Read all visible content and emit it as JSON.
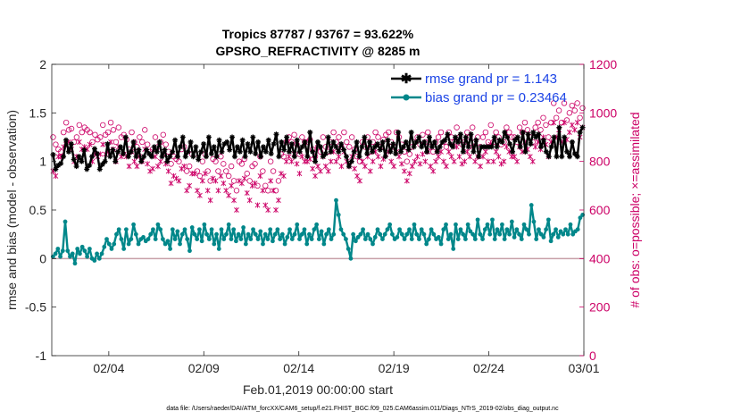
{
  "chart_data": {
    "type": "line",
    "title": "Tropics 87787 / 93767 = 93.622%",
    "subtitle": "GPSRO_REFRACTIVITY @ 8285 m",
    "xlabel": "Feb.01,2019 00:00:00 start",
    "ylabel": "rmse and bias (model - observation)",
    "ylabel_right": "# of obs: o=possible; ×=assimilated",
    "footer": "data file: /Users/raeder/DAI/ATM_forcXX/CAM6_setup/f.e21.FHIST_BGC.f09_025.CAM6assim.011/Diags_NTrS_2019-02/obs_diag_output.nc",
    "xlim": [
      0,
      28
    ],
    "ylim": [
      -1,
      2
    ],
    "ylim_right": [
      0,
      1200
    ],
    "xticks": [
      {
        "value": 3,
        "label": "02/04"
      },
      {
        "value": 8,
        "label": "02/09"
      },
      {
        "value": 13,
        "label": "02/14"
      },
      {
        "value": 18,
        "label": "02/19"
      },
      {
        "value": 23,
        "label": "02/24"
      },
      {
        "value": 28,
        "label": "03/01"
      }
    ],
    "yticks": [
      {
        "value": -1,
        "label": "-1"
      },
      {
        "value": -0.5,
        "label": "-0.5"
      },
      {
        "value": 0,
        "label": "0"
      },
      {
        "value": 0.5,
        "label": "0.5"
      },
      {
        "value": 1,
        "label": "1"
      },
      {
        "value": 1.5,
        "label": "1.5"
      },
      {
        "value": 2,
        "label": "2"
      }
    ],
    "yticks_right": [
      {
        "value": 0,
        "label": "0"
      },
      {
        "value": 200,
        "label": "200"
      },
      {
        "value": 400,
        "label": "400"
      },
      {
        "value": 600,
        "label": "600"
      },
      {
        "value": 800,
        "label": "800"
      },
      {
        "value": 1000,
        "label": "1000"
      },
      {
        "value": 1200,
        "label": "1200"
      }
    ],
    "legend": {
      "placement": "top-right",
      "entries": [
        {
          "label": "rmse grand pr = 1.143",
          "series": "rmse"
        },
        {
          "label": "bias grand pr = 0.23464",
          "series": "bias"
        }
      ]
    },
    "series": [
      {
        "name": "rmse",
        "axis": "left",
        "color": "#000000",
        "marker": "star",
        "values": [
          1.07,
          0.92,
          0.96,
          0.98,
          1.05,
          1.22,
          1.1,
          1.18,
          1.02,
          0.95,
          1.05,
          1.0,
          1.12,
          0.92,
          0.96,
          1.05,
          1.13,
          1.08,
          0.92,
          0.97,
          1.0,
          1.18,
          1.05,
          1.12,
          1.0,
          1.1,
          1.15,
          1.08,
          1.25,
          1.05,
          1.1,
          1.2,
          1.05,
          1.12,
          1.0,
          1.05,
          1.12,
          1.08,
          1.05,
          1.15,
          1.1,
          1.2,
          1.05,
          1.12,
          1.0,
          1.05,
          1.1,
          1.22,
          1.05,
          1.15,
          1.25,
          1.05,
          1.1,
          1.2,
          1.05,
          1.15,
          1.02,
          1.1,
          1.18,
          1.05,
          1.25,
          1.08,
          1.15,
          1.05,
          1.22,
          1.1,
          1.18,
          1.2,
          1.12,
          1.25,
          1.05,
          1.15,
          1.1,
          1.22,
          1.05,
          1.18,
          1.1,
          1.25,
          1.08,
          1.2,
          1.05,
          1.15,
          1.1,
          1.22,
          1.08,
          1.18,
          1.28,
          1.05,
          1.2,
          1.12,
          1.25,
          1.1,
          1.18,
          1.05,
          1.22,
          1.1,
          1.15,
          1.2,
          1.05,
          1.3,
          1.1,
          1.0,
          1.2,
          1.15,
          1.05,
          1.08,
          1.25,
          1.1,
          1.2,
          1.15,
          1.1,
          1.18,
          1.12,
          1.05,
          0.95,
          1.0,
          1.1,
          1.2,
          1.05,
          1.15,
          1.25,
          1.08,
          1.2,
          1.1,
          1.15,
          1.18,
          1.12,
          1.2,
          1.05,
          1.22,
          1.1,
          1.18,
          1.08,
          1.3,
          1.1,
          1.15,
          1.2,
          1.12,
          1.3,
          1.15,
          1.2,
          1.25,
          1.15,
          1.2,
          1.1,
          1.25,
          1.15,
          1.2,
          1.1,
          1.15,
          1.2,
          1.22,
          1.28,
          1.18,
          1.15,
          1.25,
          1.2,
          1.28,
          1.1,
          1.25,
          1.15,
          1.28,
          1.1,
          1.22,
          1.05,
          1.15,
          1.15,
          1.15,
          1.15,
          1.15,
          1.25,
          1.15,
          1.22,
          1.2,
          1.3,
          1.25,
          1.18,
          1.1,
          1.22,
          1.25,
          1.15,
          1.3,
          1.1,
          1.28,
          1.18,
          1.3,
          1.25,
          1.28,
          1.15,
          1.22,
          1.1,
          1.05,
          1.15,
          1.25,
          1.05,
          1.35,
          1.05,
          1.25,
          1.1,
          1.05,
          1.2,
          1.08,
          1.05,
          1.3,
          1.35
        ]
      },
      {
        "name": "bias",
        "axis": "left",
        "color": "#00878a",
        "marker": "circle",
        "values": [
          0.02,
          0.05,
          0.1,
          0.02,
          0.08,
          0.38,
          0.08,
          0.02,
          0.05,
          -0.05,
          0.1,
          0.05,
          0.12,
          0.08,
          0.02,
          0.1,
          0.0,
          -0.02,
          0.05,
          0.0,
          0.05,
          0.12,
          0.2,
          0.15,
          0.1,
          0.15,
          0.25,
          0.3,
          0.2,
          0.1,
          0.3,
          0.15,
          0.2,
          0.35,
          0.25,
          0.15,
          0.2,
          0.22,
          0.18,
          0.2,
          0.25,
          0.3,
          0.2,
          0.35,
          0.3,
          0.2,
          0.15,
          0.18,
          0.1,
          0.3,
          0.2,
          0.28,
          0.15,
          0.25,
          0.3,
          0.2,
          0.08,
          0.32,
          0.25,
          0.2,
          0.3,
          0.18,
          0.35,
          0.25,
          0.2,
          0.3,
          0.15,
          0.25,
          0.1,
          0.3,
          0.2,
          0.25,
          0.35,
          0.2,
          0.3,
          0.18,
          0.25,
          0.2,
          0.32,
          0.15,
          0.25,
          0.2,
          0.3,
          0.25,
          0.2,
          0.28,
          0.15,
          0.25,
          0.2,
          0.3,
          0.18,
          0.25,
          0.3,
          0.2,
          0.25,
          0.15,
          0.22,
          0.3,
          0.2,
          0.25,
          0.35,
          0.2,
          0.25,
          0.3,
          0.15,
          0.25,
          0.2,
          0.3,
          0.35,
          0.2,
          0.28,
          0.15,
          0.25,
          0.3,
          0.2,
          0.25,
          0.6,
          0.45,
          0.3,
          0.25,
          0.2,
          0.1,
          0.0,
          0.25,
          0.18,
          0.22,
          0.25,
          0.3,
          0.2,
          0.25,
          0.2,
          0.15,
          0.22,
          0.3,
          0.25,
          0.2,
          0.25,
          0.3,
          0.35,
          0.25,
          0.2,
          0.22,
          0.3,
          0.25,
          0.2,
          0.25,
          0.3,
          0.2,
          0.35,
          0.25,
          0.2,
          0.3,
          0.25,
          0.15,
          0.2,
          0.3,
          0.25,
          0.2,
          0.22,
          0.15,
          0.3,
          0.35,
          0.2,
          0.25,
          0.1,
          0.35,
          0.2,
          0.3,
          0.25,
          0.2,
          0.35,
          0.28,
          0.25,
          0.2,
          0.4,
          0.25,
          0.2,
          0.3,
          0.35,
          0.25,
          0.4,
          0.2,
          0.3,
          0.25,
          0.35,
          0.2,
          0.3,
          0.25,
          0.38,
          0.22,
          0.3,
          0.25,
          0.2,
          0.35,
          0.3,
          0.25,
          0.55,
          0.38,
          0.2,
          0.3,
          0.25,
          0.22,
          0.3,
          0.4,
          0.18,
          0.25,
          0.3,
          0.22,
          0.28,
          0.25,
          0.3,
          0.25,
          0.35,
          0.25,
          0.28,
          0.3,
          0.42,
          0.45
        ]
      },
      {
        "name": "obs_possible",
        "axis": "right",
        "color": "#cc0066",
        "marker": "open-circle",
        "values": [
          900,
          870,
          850,
          840,
          920,
          960,
          930,
          935,
          880,
          900,
          950,
          920,
          940,
          930,
          920,
          880,
          910,
          890,
          900,
          950,
          910,
          920,
          960,
          930,
          880,
          940,
          900,
          910,
          890,
          850,
          920,
          880,
          860,
          900,
          880,
          930,
          870,
          840,
          850,
          900,
          860,
          880,
          910,
          870,
          840,
          790,
          820,
          810,
          800,
          850,
          860,
          760,
          780,
          830,
          830,
          760,
          740,
          800,
          830,
          760,
          720,
          810,
          800,
          760,
          820,
          790,
          760,
          740,
          780,
          720,
          680,
          800,
          790,
          810,
          750,
          720,
          780,
          790,
          700,
          820,
          760,
          700,
          680,
          800,
          760,
          680,
          720,
          830,
          820,
          880,
          900,
          880,
          910,
          870,
          830,
          900,
          880,
          880,
          890,
          850,
          820,
          860,
          840,
          900,
          860,
          840,
          880,
          920,
          880,
          900,
          860,
          920,
          880,
          860,
          900,
          850,
          820,
          800,
          880,
          860,
          900,
          840,
          880,
          920,
          900,
          860,
          890,
          910,
          920,
          880,
          860,
          920,
          900,
          870,
          840,
          800,
          830,
          860,
          880,
          900,
          870,
          910,
          880,
          920,
          860,
          840,
          880,
          900,
          920,
          880,
          860,
          920,
          900,
          880,
          940,
          900,
          870,
          880,
          920,
          900,
          940,
          880,
          900,
          860,
          900,
          920,
          880,
          950,
          880,
          920,
          900,
          870,
          880,
          940,
          920,
          900,
          900,
          880,
          940,
          920,
          960,
          930,
          900,
          880,
          940,
          960,
          930,
          980,
          950,
          900,
          960,
          1040,
          980,
          1010,
          960,
          1040,
          970,
          1000,
          1030,
          1010,
          1040,
          980,
          1020
        ]
      },
      {
        "name": "obs_assimilated",
        "axis": "right",
        "color": "#cc0066",
        "marker": "x-star",
        "values": [
          760,
          740,
          820,
          820,
          860,
          870,
          880,
          850,
          800,
          820,
          880,
          850,
          860,
          850,
          870,
          800,
          830,
          820,
          830,
          870,
          830,
          840,
          880,
          850,
          800,
          860,
          820,
          830,
          820,
          780,
          840,
          800,
          780,
          820,
          800,
          850,
          790,
          760,
          770,
          820,
          780,
          800,
          830,
          790,
          760,
          710,
          740,
          730,
          720,
          770,
          780,
          680,
          700,
          750,
          750,
          680,
          660,
          720,
          750,
          680,
          640,
          730,
          720,
          680,
          740,
          710,
          680,
          660,
          700,
          640,
          600,
          720,
          710,
          730,
          670,
          640,
          700,
          710,
          620,
          740,
          680,
          620,
          600,
          720,
          680,
          600,
          640,
          750,
          740,
          800,
          820,
          800,
          830,
          790,
          750,
          820,
          800,
          800,
          810,
          770,
          740,
          780,
          760,
          820,
          780,
          760,
          800,
          840,
          800,
          820,
          780,
          840,
          800,
          780,
          820,
          770,
          740,
          720,
          800,
          780,
          820,
          760,
          800,
          840,
          820,
          780,
          810,
          830,
          840,
          800,
          780,
          840,
          820,
          790,
          760,
          720,
          750,
          780,
          800,
          820,
          790,
          830,
          800,
          840,
          780,
          760,
          800,
          820,
          840,
          800,
          780,
          840,
          820,
          800,
          860,
          820,
          790,
          800,
          840,
          820,
          860,
          800,
          820,
          780,
          820,
          840,
          800,
          870,
          800,
          840,
          820,
          790,
          800,
          860,
          840,
          820,
          820,
          800,
          860,
          840,
          880,
          850,
          820,
          800,
          860,
          880,
          850,
          900,
          870,
          820,
          880,
          960,
          900,
          930,
          880,
          960,
          890,
          920,
          950,
          930,
          960,
          900,
          940
        ]
      }
    ]
  }
}
